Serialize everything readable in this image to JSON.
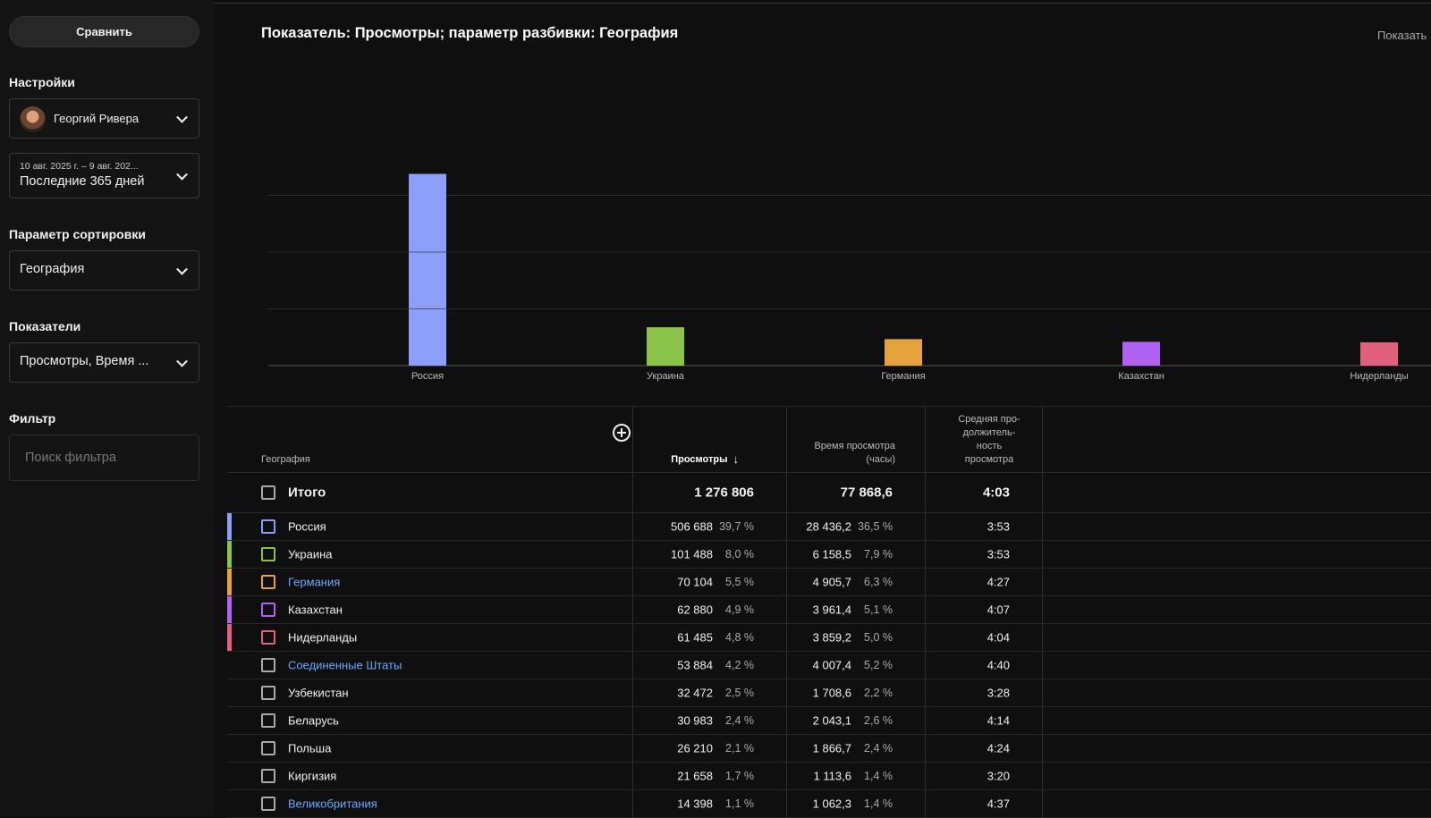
{
  "sidebar": {
    "compare_label": "Сравнить",
    "settings_label": "Настройки",
    "account_name": "Георгий Ривера",
    "date_range_small": "10 авг. 2025 г. – 9 авг. 202...",
    "date_range_main": "Последние 365 дней",
    "sort_label": "Параметр сортировки",
    "sort_value": "География",
    "metrics_label": "Показатели",
    "metrics_value": "Просмотры, Время ...",
    "filter_label": "Фильтр",
    "filter_placeholder": "Поиск фильтра"
  },
  "header": {
    "title": "Показатель: Просмотры; параметр разбивки: География",
    "show_link": "Показать"
  },
  "chart_data": {
    "type": "bar",
    "categories": [
      "Россия",
      "Украина",
      "Германия",
      "Казахстан",
      "Нидерланды"
    ],
    "values": [
      506688,
      101488,
      70104,
      62880,
      61485
    ],
    "colors": [
      "#8c9ef8",
      "#8bc34a",
      "#e6a23c",
      "#b063f0",
      "#e0607e"
    ],
    "ylim": [
      0,
      600000
    ],
    "grid": true
  },
  "table": {
    "columns": {
      "geo": "География",
      "views": "Просмотры",
      "watch_time": [
        "Время просмотра",
        "(часы)"
      ],
      "avg_duration": [
        "Средняя про-",
        "должитель-",
        "ность",
        "просмотра"
      ]
    },
    "total": {
      "label": "Итого",
      "views": "1 276 806",
      "watch_time": "77 868,6",
      "avg": "4:03"
    },
    "rows": [
      {
        "name": "Россия",
        "link": false,
        "color": "#8c9ef8",
        "views": "506 688",
        "views_pct": "39,7 %",
        "hours": "28 436,2",
        "hours_pct": "36,5 %",
        "avg": "3:53"
      },
      {
        "name": "Украина",
        "link": false,
        "color": "#8bc34a",
        "views": "101 488",
        "views_pct": "8,0 %",
        "hours": "6 158,5",
        "hours_pct": "7,9 %",
        "avg": "3:53"
      },
      {
        "name": "Германия",
        "link": true,
        "color": "#e6a23c",
        "views": "70 104",
        "views_pct": "5,5 %",
        "hours": "4 905,7",
        "hours_pct": "6,3 %",
        "avg": "4:27"
      },
      {
        "name": "Казахстан",
        "link": false,
        "color": "#b063f0",
        "views": "62 880",
        "views_pct": "4,9 %",
        "hours": "3 961,4",
        "hours_pct": "5,1 %",
        "avg": "4:07"
      },
      {
        "name": "Нидерланды",
        "link": false,
        "color": "#e0607e",
        "views": "61 485",
        "views_pct": "4,8 %",
        "hours": "3 859,2",
        "hours_pct": "5,0 %",
        "avg": "4:04"
      },
      {
        "name": "Соединенные Штаты",
        "link": true,
        "color": "",
        "views": "53 884",
        "views_pct": "4,2 %",
        "hours": "4 007,4",
        "hours_pct": "5,2 %",
        "avg": "4:40"
      },
      {
        "name": "Узбекистан",
        "link": false,
        "color": "",
        "views": "32 472",
        "views_pct": "2,5 %",
        "hours": "1 708,6",
        "hours_pct": "2,2 %",
        "avg": "3:28"
      },
      {
        "name": "Беларусь",
        "link": false,
        "color": "",
        "views": "30 983",
        "views_pct": "2,4 %",
        "hours": "2 043,1",
        "hours_pct": "2,6 %",
        "avg": "4:14"
      },
      {
        "name": "Польша",
        "link": false,
        "color": "",
        "views": "26 210",
        "views_pct": "2,1 %",
        "hours": "1 866,7",
        "hours_pct": "2,4 %",
        "avg": "4:24"
      },
      {
        "name": "Киргизия",
        "link": false,
        "color": "",
        "views": "21 658",
        "views_pct": "1,7 %",
        "hours": "1 113,6",
        "hours_pct": "1,4 %",
        "avg": "3:20"
      },
      {
        "name": "Великобритания",
        "link": true,
        "color": "",
        "views": "14 398",
        "views_pct": "1,1 %",
        "hours": "1 062,3",
        "hours_pct": "1,4 %",
        "avg": "4:37"
      }
    ]
  }
}
